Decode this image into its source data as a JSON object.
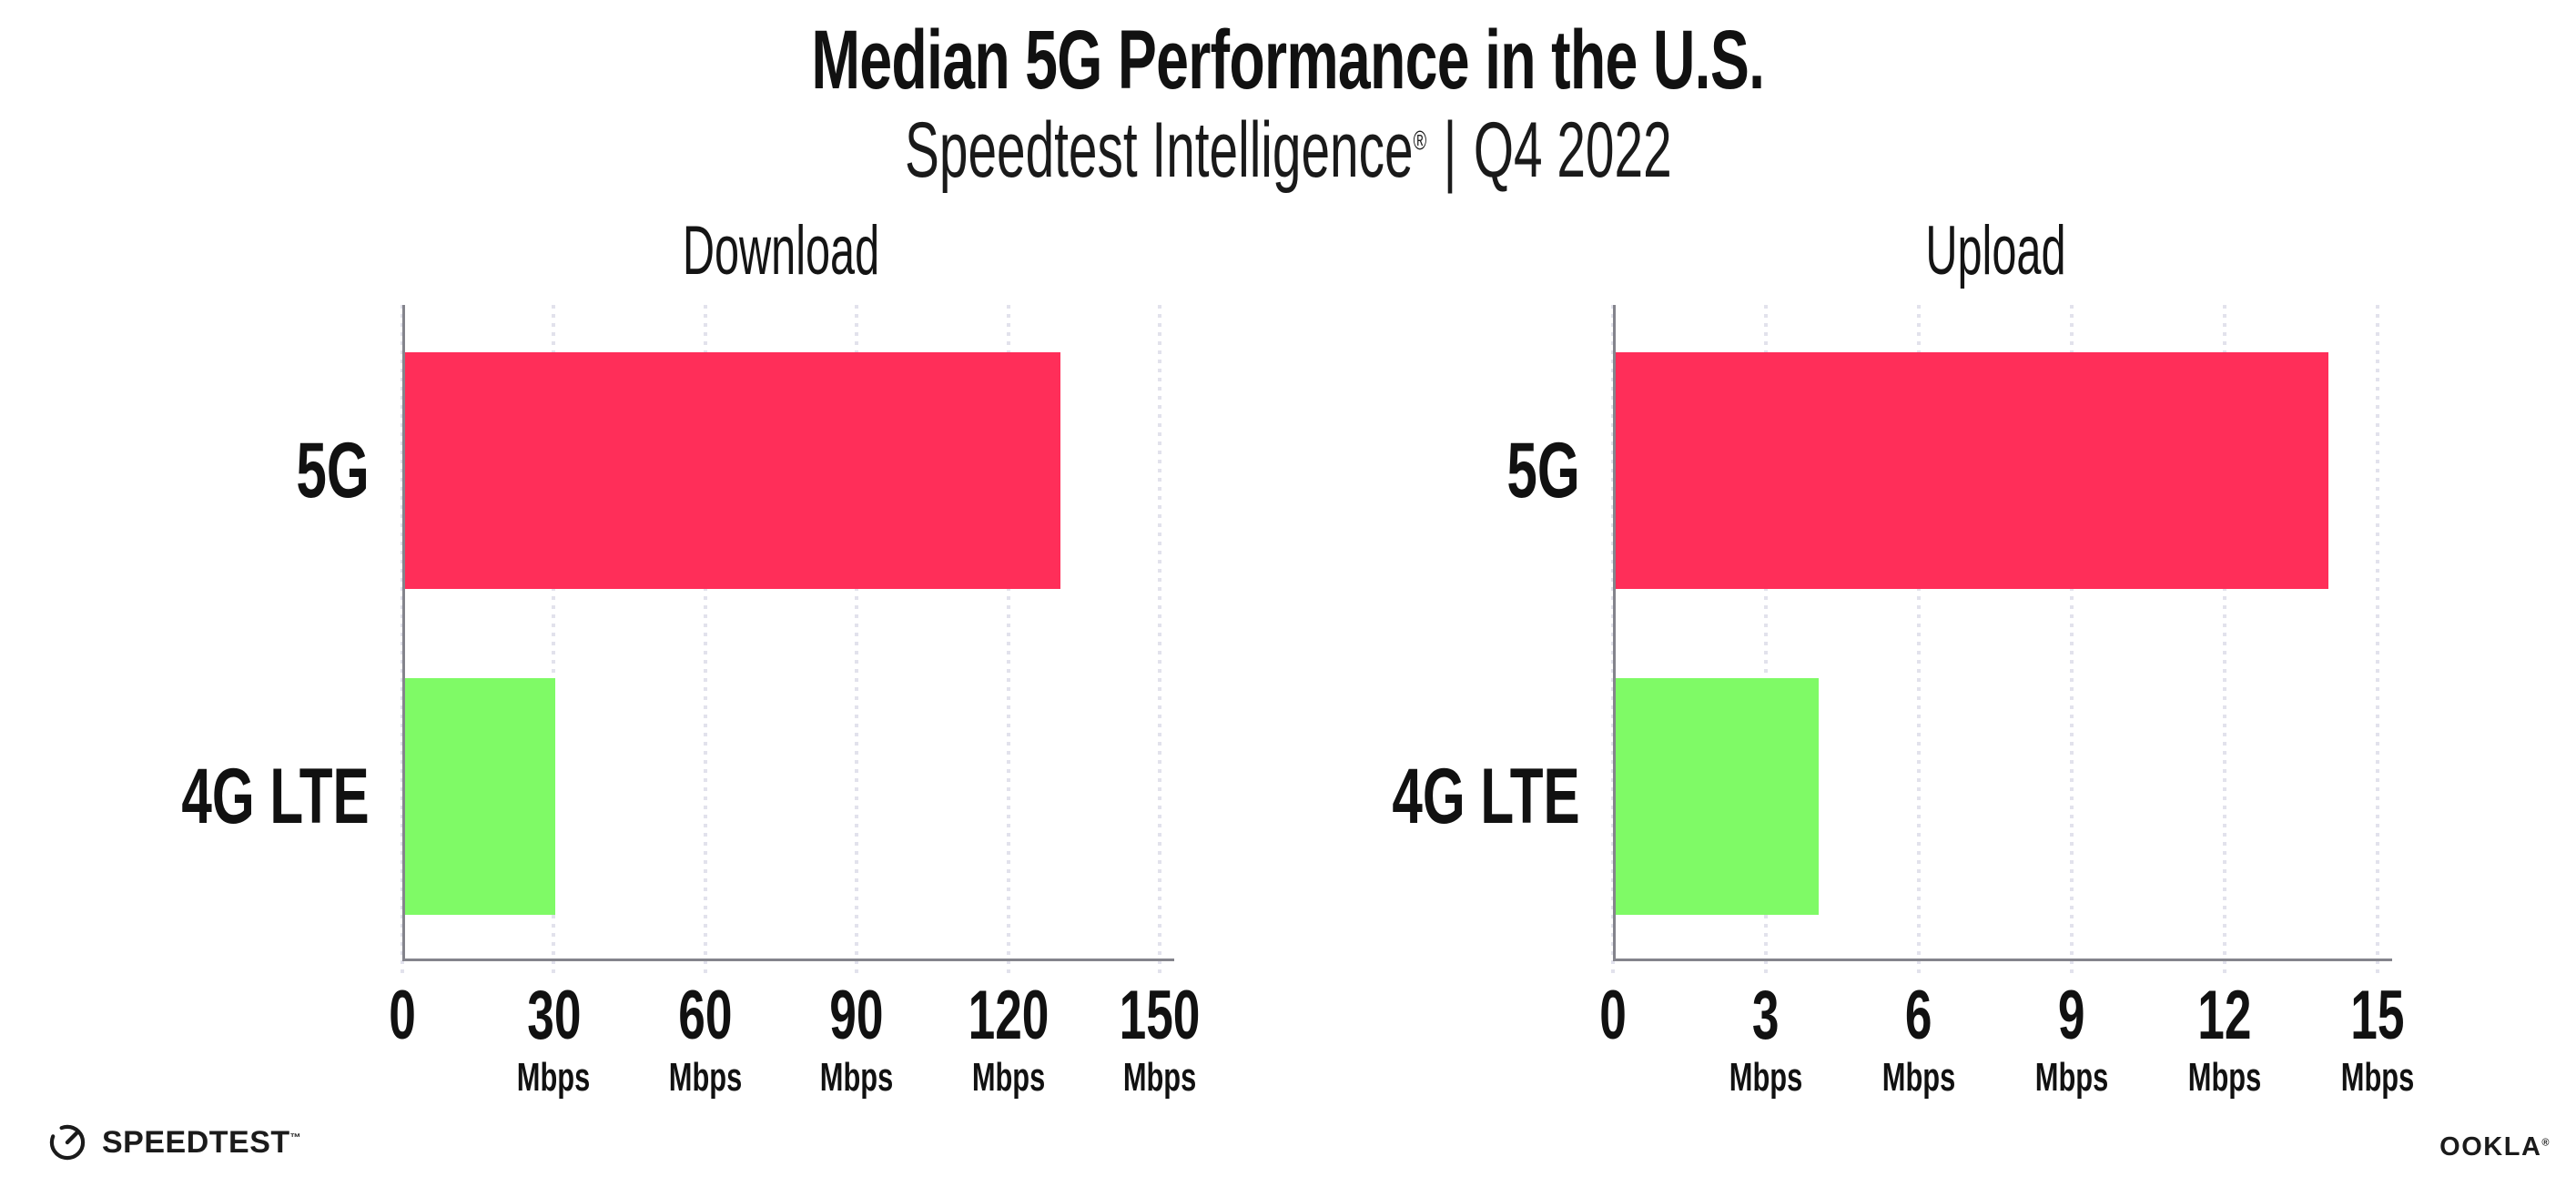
{
  "header": {
    "title": "Median 5G Performance in the U.S.",
    "subtitle": {
      "brand": "Speedtest Intelligence",
      "registered": "®",
      "separator": "|",
      "period": "Q4 2022"
    }
  },
  "colors": {
    "bar_5g": "#FF2E59",
    "bar_4g_lte": "#7FFA66",
    "axis": "#84848C",
    "gridline": "#E2E2EC",
    "text": "#111111"
  },
  "chart_data": [
    {
      "type": "bar",
      "orientation": "horizontal",
      "title": "Download",
      "categories": [
        "5G",
        "4G LTE"
      ],
      "values": [
        130,
        30
      ],
      "unit": "Mbps",
      "xlim": [
        0,
        150
      ],
      "ticks": [
        0,
        30,
        60,
        90,
        120,
        150
      ],
      "tick_unit_label": "Mbps",
      "bar_colors": [
        "#FF2E59",
        "#7FFA66"
      ],
      "grid": "dotted-vertical",
      "legend": "none"
    },
    {
      "type": "bar",
      "orientation": "horizontal",
      "title": "Upload",
      "categories": [
        "5G",
        "4G LTE"
      ],
      "values": [
        14,
        4
      ],
      "unit": "Mbps",
      "xlim": [
        0,
        15
      ],
      "ticks": [
        0,
        3,
        6,
        9,
        12,
        15
      ],
      "tick_unit_label": "Mbps",
      "bar_colors": [
        "#FF2E59",
        "#7FFA66"
      ],
      "grid": "dotted-vertical",
      "legend": "none"
    }
  ],
  "footer": {
    "speedtest_label": "SPEEDTEST",
    "speedtest_mark": "™",
    "ookla_label": "OOKLA",
    "ookla_mark": "®"
  }
}
